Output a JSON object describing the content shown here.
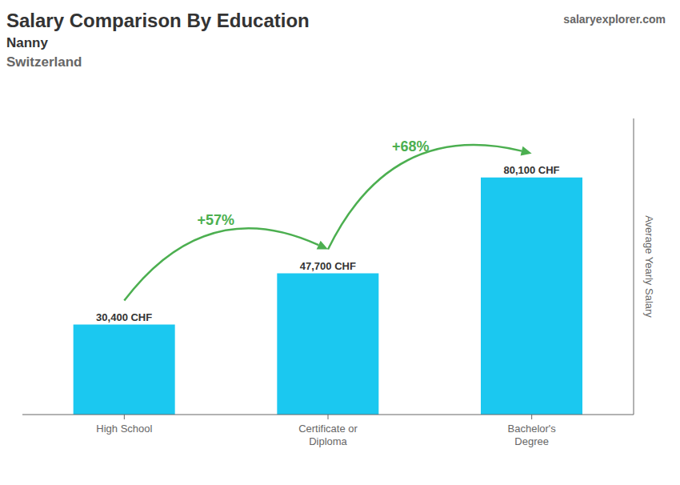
{
  "chart_data": {
    "type": "bar",
    "title": "Salary Comparison By Education",
    "subtitle": [
      "Nanny",
      "Switzerland"
    ],
    "source": "salaryexplorer.com",
    "ylabel": "Average Yearly Salary",
    "categories": [
      "High School",
      "Certificate or\nDiploma",
      "Bachelor's\nDegree"
    ],
    "values": [
      30400,
      47700,
      80100
    ],
    "value_labels": [
      "30,400 CHF",
      "47,700 CHF",
      "80,100 CHF"
    ],
    "data_labels": true,
    "color": "#1BC8F0",
    "ylim": [
      0,
      100000
    ],
    "tick_labels": "x",
    "grid": false,
    "annotations": [
      "+57%",
      "+68%"
    ]
  }
}
